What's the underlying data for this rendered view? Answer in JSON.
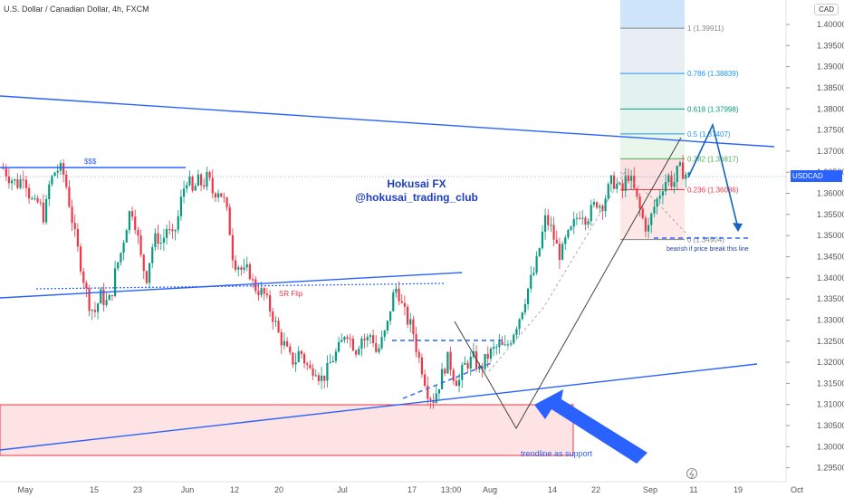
{
  "header": {
    "symbol_line": "U.S. Dollar / Canadian Dollar, 4h, FXCM",
    "currency_button": "CAD",
    "ticker": "USDCAD",
    "last_price": "1.36396"
  },
  "annotations": {
    "brand_title": "Hokusai FX",
    "brand_handle": "@hokusai_trading_club",
    "liquidity_label": "$$$",
    "sr_flip_label": "SR Flip",
    "bearish_note": "bearish if price break this line",
    "trendline_note": "trendline as support"
  },
  "fibonacci": [
    {
      "level": "1",
      "price": "1.39911",
      "color": "#888888"
    },
    {
      "level": "0.786",
      "price": "1.38839",
      "color": "#2196f3"
    },
    {
      "level": "0.618",
      "price": "1.37998",
      "color": "#089981"
    },
    {
      "level": "0.5",
      "price": "1.37407",
      "color": "#2196f3"
    },
    {
      "level": "0.382",
      "price": "1.36817",
      "color": "#4caf50"
    },
    {
      "level": "0.236",
      "price": "1.36086",
      "color": "#f23645"
    },
    {
      "level": "0",
      "price": "1.34904",
      "color": "#888888"
    }
  ],
  "colors": {
    "up_candle": "#089981",
    "down_candle": "#f23645",
    "drawing_blue": "#2962ff",
    "support_zone_fill": "#fde3e3",
    "support_zone_border": "#f23645"
  },
  "chart_data": {
    "type": "candlestick",
    "title": "U.S. Dollar / Canadian Dollar, 4h, FXCM",
    "ylim": [
      1.293,
      1.4045
    ],
    "y_ticks": [
      "1.40000",
      "1.39500",
      "1.39000",
      "1.38500",
      "1.38000",
      "1.37500",
      "1.37000",
      "1.36500",
      "1.36000",
      "1.35500",
      "1.35000",
      "1.34500",
      "1.34000",
      "1.33500",
      "1.33000",
      "1.32500",
      "1.32000",
      "1.31500",
      "1.31000",
      "1.30500",
      "1.30000",
      "1.29500"
    ],
    "x_ticks": [
      "May",
      "15",
      "23",
      "Jun",
      "12",
      "20",
      "Jul",
      "17",
      "13:00",
      "Aug",
      "14",
      "22",
      "Sep",
      "11",
      "19",
      "Oct"
    ],
    "price_path": [
      [
        1.366,
        1.364,
        1.363,
        1.362,
        1.365,
        1.36,
        1.357,
        1.358,
        1.354,
        1.362,
        1.365,
        1.366
      ],
      [
        1.364,
        1.357,
        1.35,
        1.344,
        1.338,
        1.333,
        1.332,
        1.336,
        1.334,
        1.335,
        1.342,
        1.346
      ],
      [
        1.352,
        1.357,
        1.352,
        1.344,
        1.34,
        1.347,
        1.35,
        1.348,
        1.352,
        1.349,
        1.353,
        1.36
      ],
      [
        1.364,
        1.36,
        1.363,
        1.362,
        1.364,
        1.36,
        1.361,
        1.359,
        1.354,
        1.344,
        1.343,
        1.341
      ],
      [
        1.342,
        1.338,
        1.337,
        1.336,
        1.333,
        1.33,
        1.326,
        1.324,
        1.321,
        1.32,
        1.323,
        1.32
      ],
      [
        1.318,
        1.319,
        1.316,
        1.317,
        1.32,
        1.322,
        1.324,
        1.328,
        1.325,
        1.323,
        1.326,
        1.325
      ],
      [
        1.327,
        1.322,
        1.325,
        1.328,
        1.335,
        1.338,
        1.333,
        1.33,
        1.328,
        1.322,
        1.318,
        1.313
      ],
      [
        1.311,
        1.314,
        1.318,
        1.321,
        1.317,
        1.315,
        1.319,
        1.32,
        1.321,
        1.318,
        1.32,
        1.322
      ],
      [
        1.323,
        1.324,
        1.323,
        1.325,
        1.328,
        1.331,
        1.335,
        1.339,
        1.342,
        1.348,
        1.354,
        1.352
      ],
      [
        1.348,
        1.345,
        1.349,
        1.351,
        1.354,
        1.356,
        1.354,
        1.356,
        1.358,
        1.357,
        1.36,
        1.363
      ],
      [
        1.362,
        1.36,
        1.365,
        1.362,
        1.358,
        1.354,
        1.351,
        1.356,
        1.359,
        1.362,
        1.364,
        1.362,
        1.366,
        1.365,
        1.364
      ]
    ]
  }
}
